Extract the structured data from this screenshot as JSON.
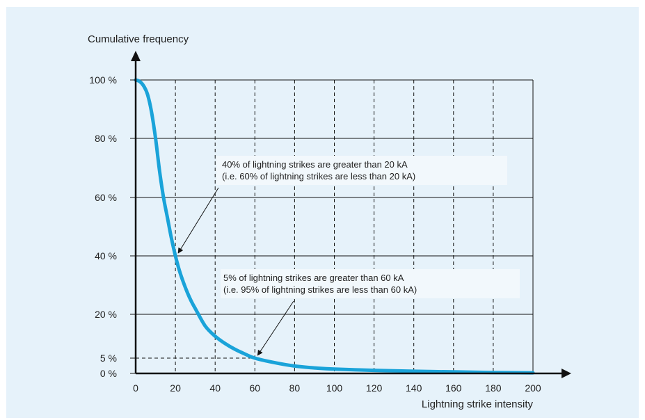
{
  "chart_data": {
    "type": "line",
    "ylabel": "Cumulative frequency",
    "xlabel": "Lightning strike intensity",
    "xlim": [
      0,
      200
    ],
    "ylim": [
      0,
      100
    ],
    "x_ticks": [
      0,
      20,
      40,
      60,
      80,
      100,
      120,
      140,
      160,
      180,
      200
    ],
    "y_ticks": [
      {
        "value": 0,
        "label": "0 %"
      },
      {
        "value": 5,
        "label": "5 %"
      },
      {
        "value": 20,
        "label": "20 %"
      },
      {
        "value": 40,
        "label": "40 %"
      },
      {
        "value": 60,
        "label": "60 %"
      },
      {
        "value": 80,
        "label": "80 %"
      },
      {
        "value": 100,
        "label": "100 %"
      }
    ],
    "grid": {
      "horizontal": "solid",
      "vertical": "dashed"
    },
    "series": [
      {
        "color": "#1aa3d9",
        "x": [
          0,
          2,
          4,
          6,
          8,
          10,
          12,
          14,
          16,
          18,
          20,
          22,
          24,
          26,
          28,
          30,
          35,
          40,
          45,
          50,
          55,
          60,
          70,
          80,
          90,
          100,
          120,
          140,
          160,
          180,
          200
        ],
        "y": [
          100,
          99.5,
          98,
          95,
          89,
          80,
          69,
          60,
          53,
          46,
          40,
          35,
          31,
          27.5,
          24.5,
          22,
          16,
          12.5,
          10,
          8,
          6.4,
          5,
          3.5,
          2.4,
          1.8,
          1.4,
          1,
          0.7,
          0.5,
          0.3,
          0.2
        ]
      }
    ],
    "reference_lines": [
      {
        "x": 60,
        "y": 5
      }
    ],
    "annotations": [
      {
        "lines": [
          "40% of lightning strikes are greater than 20 kA",
          "(i.e. 60% of lightning strikes are less than 20 kA)"
        ],
        "target": {
          "x": 20,
          "y": 40
        }
      },
      {
        "lines": [
          "5% of lightning strikes are greater than 60 kA",
          "(i.e. 95% of lightning strikes are less than 60 kA)"
        ],
        "target": {
          "x": 60,
          "y": 5
        }
      }
    ]
  }
}
